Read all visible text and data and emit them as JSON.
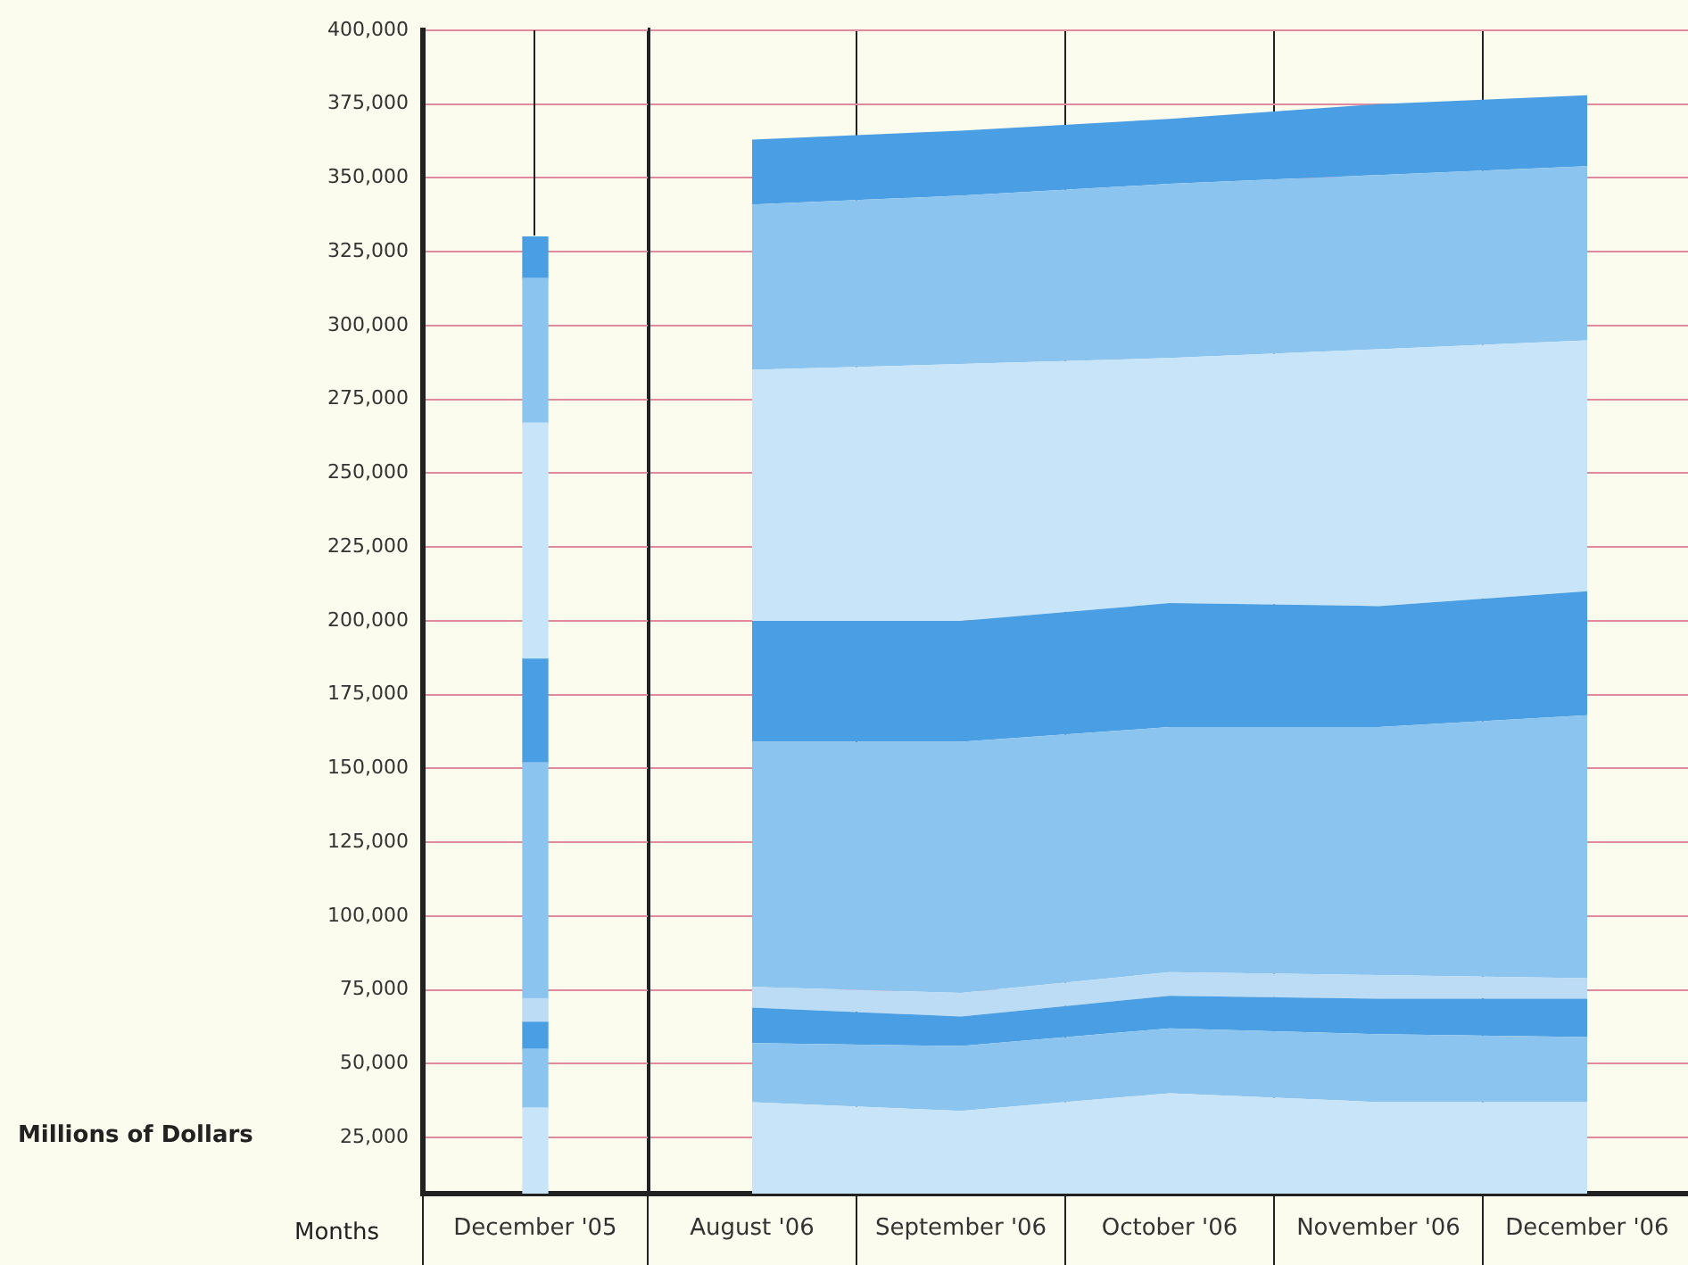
{
  "chart_data": [
    {
      "type": "bar",
      "stacked": true,
      "xlabel": "Months",
      "ylabel": "Millions of Dollars",
      "categories": [
        "December '05"
      ],
      "ylim": [
        6000,
        400000
      ],
      "grid": true,
      "legend": false,
      "yticks": [
        {
          "value": 25000,
          "label": "25,000"
        },
        {
          "value": 50000,
          "label": "50,000"
        },
        {
          "value": 75000,
          "label": "75,000"
        },
        {
          "value": 100000,
          "label": "100,000"
        },
        {
          "value": 125000,
          "label": "125,000"
        },
        {
          "value": 150000,
          "label": "150,000"
        },
        {
          "value": 175000,
          "label": "175,000"
        },
        {
          "value": 200000,
          "label": "200,000"
        },
        {
          "value": 225000,
          "label": "225,000"
        },
        {
          "value": 250000,
          "label": "250,000"
        },
        {
          "value": 275000,
          "label": "275,000"
        },
        {
          "value": 300000,
          "label": "300,000"
        },
        {
          "value": 325000,
          "label": "325,000"
        },
        {
          "value": 350000,
          "label": "350,000"
        },
        {
          "value": 375000,
          "label": "375,000"
        },
        {
          "value": 400000,
          "label": "400,000"
        }
      ],
      "series": [
        {
          "color": "#c8e4f8",
          "values": [
            35000
          ]
        },
        {
          "color": "#8cc4f0",
          "values": [
            20000
          ]
        },
        {
          "color": "#4a9fe4",
          "values": [
            9000
          ]
        },
        {
          "color": "#bcdcf6",
          "values": [
            8000
          ]
        },
        {
          "color": "#8cc4f0",
          "values": [
            80000
          ]
        },
        {
          "color": "#4a9fe4",
          "values": [
            35000
          ]
        },
        {
          "color": "#c8e4f8",
          "values": [
            80000
          ]
        },
        {
          "color": "#8cc4f0",
          "values": [
            49000
          ]
        },
        {
          "color": "#4a9fe4",
          "values": [
            14000
          ]
        }
      ]
    },
    {
      "type": "area",
      "stacked": true,
      "categories": [
        "August '06",
        "September '06",
        "October '06",
        "November '06",
        "December '06"
      ],
      "ylim": [
        6000,
        400000
      ],
      "grid": true,
      "legend": false,
      "tick_labels": "x",
      "yticks": [
        {
          "value": 25000,
          "label": null
        },
        {
          "value": 50000,
          "label": null
        },
        {
          "value": 75000,
          "label": null
        },
        {
          "value": 100000,
          "label": null
        },
        {
          "value": 125000,
          "label": null
        },
        {
          "value": 150000,
          "label": null
        },
        {
          "value": 175000,
          "label": null
        },
        {
          "value": 200000,
          "label": null
        },
        {
          "value": 225000,
          "label": null
        },
        {
          "value": 250000,
          "label": null
        },
        {
          "value": 275000,
          "label": null
        },
        {
          "value": 300000,
          "label": null
        },
        {
          "value": 325000,
          "label": null
        },
        {
          "value": 350000,
          "label": null
        },
        {
          "value": 375000,
          "label": null
        },
        {
          "value": 400000,
          "label": null
        }
      ],
      "series": [
        {
          "color": "#c8e4f8",
          "values": [
            37000,
            34000,
            40000,
            37000,
            37000
          ]
        },
        {
          "color": "#8cc4f0",
          "values": [
            20000,
            22000,
            22000,
            23000,
            22000
          ]
        },
        {
          "color": "#4a9fe4",
          "values": [
            12000,
            10000,
            11000,
            12000,
            13000
          ]
        },
        {
          "color": "#bcdcf6",
          "values": [
            7000,
            8000,
            8000,
            8000,
            7000
          ]
        },
        {
          "color": "#8cc4f0",
          "values": [
            83000,
            85000,
            83000,
            84000,
            89000
          ]
        },
        {
          "color": "#4a9fe4",
          "values": [
            41000,
            41000,
            42000,
            41000,
            42000
          ]
        },
        {
          "color": "#c8e4f8",
          "values": [
            85000,
            87000,
            83000,
            87000,
            85000
          ]
        },
        {
          "color": "#8cc4f0",
          "values": [
            56000,
            57000,
            59000,
            59000,
            59000
          ]
        },
        {
          "color": "#4a9fe4",
          "values": [
            22000,
            22000,
            22000,
            24000,
            24000
          ]
        }
      ]
    }
  ]
}
